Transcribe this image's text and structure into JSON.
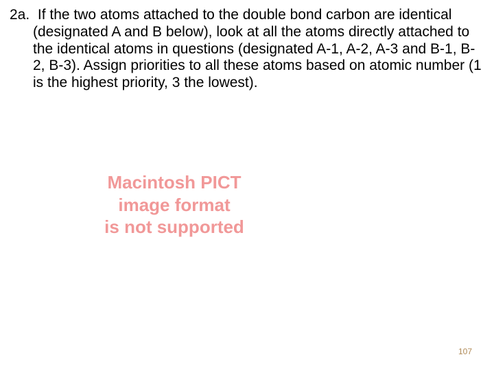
{
  "text": {
    "item_label": "2a.",
    "body": "If the two atoms attached to the double bond carbon are identical (designated A and B below), look at all the atoms directly attached to the identical atoms in questions (designated A-1, A-2, A-3 and B-1, B-2, B-3).  Assign priorities to all these atoms based on atomic number (1 is the highest priority, 3 the lowest)."
  },
  "pict_message": {
    "line1": "Macintosh PICT",
    "line2": "image format",
    "line3": "is not supported",
    "color": "#f19898"
  },
  "page_number": "107",
  "page_number_color": "#b08a56",
  "body_color": "#000000"
}
